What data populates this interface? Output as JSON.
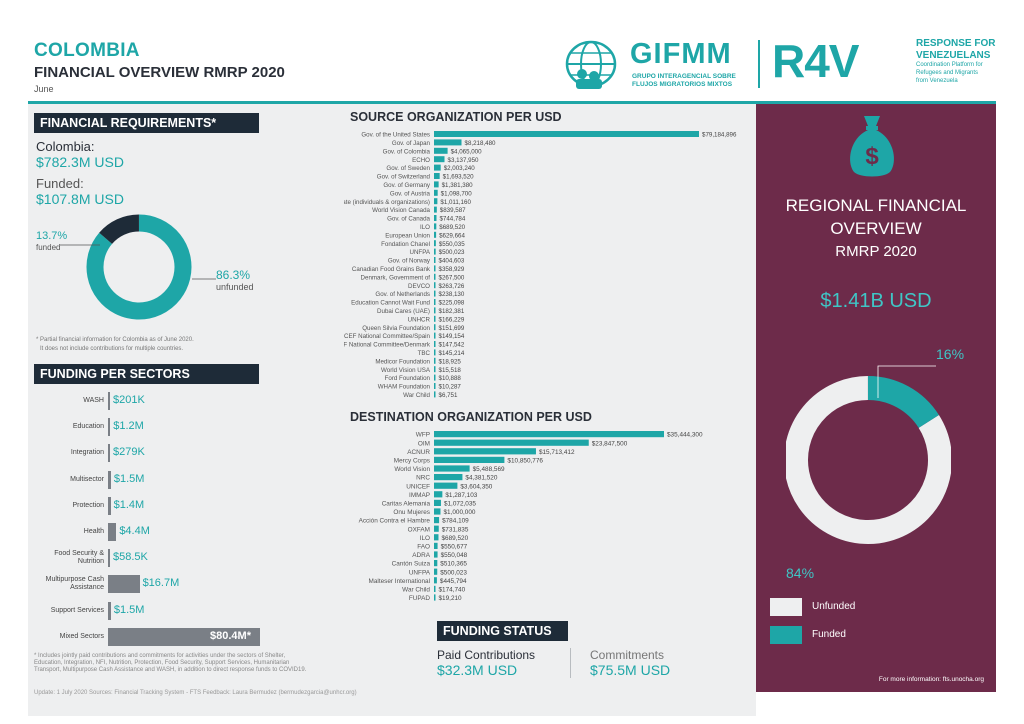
{
  "header": {
    "country": "COLOMBIA",
    "title": "FINANCIAL OVERVIEW RMRP 2020",
    "month": "June",
    "gifmm_name": "GIFMM",
    "gifmm_sub1": "GRUPO INTERAGENCIAL SOBRE",
    "gifmm_sub2": "FLUJOS MIGRATORIOS MIXTOS",
    "r4v_name": "R4V",
    "r4v_line1": "RESPONSE FOR",
    "r4v_line2": "VENEZUELANS",
    "r4v_line3": "Coordination Platform for",
    "r4v_line4": "Refugees and Migrants",
    "r4v_line5": "from Venezuela"
  },
  "colors": {
    "teal": "#1ea6a7",
    "navy": "#1e2b38",
    "grey_bar": "#7a7f86",
    "purple": "#6d2b4a"
  },
  "financial_requirements": {
    "heading": "FINANCIAL REQUIREMENTS*",
    "colombia_label": "Colombia:",
    "requirement": "$782.3M USD",
    "funded_label": "Funded:",
    "funded_value": "$107.8M USD",
    "funded_pct": "13.7%",
    "funded_pct_label": "funded",
    "unfunded_pct": "86.3%",
    "unfunded_pct_label": "unfunded",
    "funded_fraction": 0.137,
    "note_line1": "* Partial financial information for Colombia as of June 2020.",
    "note_line2": "It does not include contributions for multiple countries."
  },
  "funding_per_sectors": {
    "heading": "FUNDING PER SECTORS",
    "note": "* Includes jointly paid contributions and commitments for activities under the sectors of Shelter, Education, Integration, NFI, Nutrition, Protection, Food Security, Support Services, Humanitarian Transport, Multipurpose Cash Assistance and WASH, in addition to direct response funds to COVID19."
  },
  "footer": "Update: 1 July 2020    Sources: Financial Tracking System - FTS    Feedback: Laura Bermudez (bermudezgarcia@unhcr.org)",
  "chart_data": [
    {
      "type": "bar",
      "orientation": "horizontal",
      "title": "FUNDING PER SECTORS",
      "categories": [
        "WASH",
        "Education",
        "Integration",
        "Multisector",
        "Protection",
        "Health",
        "Food Security & Nutrition",
        "Multipurpose Cash Assistance",
        "Support Services",
        "Mixed Sectors"
      ],
      "values": [
        201000,
        1200000,
        279000,
        1500000,
        1400000,
        4400000,
        58500,
        16700000,
        1500000,
        80400000
      ],
      "labels": [
        "$201K",
        "$1.2M",
        "$279K",
        "$1.5M",
        "$1.4M",
        "$4.4M",
        "$58.5K",
        "$16.7M",
        "$1.5M",
        "$80.4M*"
      ]
    },
    {
      "type": "bar",
      "orientation": "horizontal",
      "title": "SOURCE ORGANIZATION PER USD",
      "categories": [
        "Gov. of the United States",
        "Gov. of Japan",
        "Gov. of Colombia",
        "ECHO",
        "Gov. of Sweden",
        "Gov. of Switzerland",
        "Gov. of Germany",
        "Gov. of Austria",
        "Private (individuals & organizations)",
        "World Vision Canada",
        "Gov. of Canada",
        "ILO",
        "European Union",
        "Fondation Chanel",
        "UNFPA",
        "Gov. of Norway",
        "Canadian Food Grains Bank",
        "Denmark, Government of",
        "DEVCO",
        "Gov. of Netherlands",
        "Education Cannot Wait Fund",
        "Dubai Cares (UAE)",
        "UNHCR",
        "Queen Silvia Foundation",
        "UNICEF National Committee/Spain",
        "UNICEF National Committee/Denmark",
        "TBC",
        "Medicor Foundation",
        "World Vision USA",
        "Ford Foundation",
        "WHAM Foundation",
        "War Child"
      ],
      "values": [
        79184896,
        8218480,
        4065000,
        3137950,
        2003240,
        1693520,
        1381380,
        1098700,
        1011160,
        839587,
        744784,
        689520,
        629664,
        550035,
        500023,
        404603,
        358929,
        267500,
        263726,
        238130,
        225098,
        182381,
        166229,
        151699,
        149154,
        147542,
        145214,
        18925,
        15518,
        10888,
        10287,
        6751
      ],
      "labels": [
        "$79,184,896",
        "$8,218,480",
        "$4,065,000",
        "$3,137,950",
        "$2,003,240",
        "$1,693,520",
        "$1,381,380",
        "$1,098,700",
        "$1,011,160",
        "$839,587",
        "$744,784",
        "$689,520",
        "$629,664",
        "$550,035",
        "$500,023",
        "$404,603",
        "$358,929",
        "$267,500",
        "$263,726",
        "$238,130",
        "$225,098",
        "$182,381",
        "$166,229",
        "$151,699",
        "$149,154",
        "$147,542",
        "$145,214",
        "$18,925",
        "$15,518",
        "$10,888",
        "$10,287",
        "$6,751"
      ]
    },
    {
      "type": "bar",
      "orientation": "horizontal",
      "title": "DESTINATION ORGANIZATION PER USD",
      "categories": [
        "WFP",
        "OIM",
        "ACNUR",
        "Mercy Corps",
        "World Vision",
        "NRC",
        "UNICEF",
        "IMMAP",
        "Caritas Alemania",
        "Onu Mujeres",
        "Acción Contra el Hambre",
        "OXFAM",
        "ILO",
        "FAO",
        "ADRA",
        "Cantón Suiza",
        "UNFPA",
        "Malteser International",
        "War Child",
        "FUPAD"
      ],
      "values": [
        35444300,
        23847500,
        15713412,
        10850776,
        5488569,
        4381520,
        3604350,
        1287103,
        1072035,
        1000000,
        784109,
        731835,
        689520,
        550677,
        550048,
        510365,
        500023,
        445794,
        174740,
        19210
      ],
      "labels": [
        "$35,444,300",
        "$23,847,500",
        "$15,713,412",
        "$10,850,776",
        "$5,488,569",
        "$4,381,520",
        "$3,604,350",
        "$1,287,103",
        "$1,072,035",
        "$1,000,000",
        "$784,109",
        "$731,835",
        "$689,520",
        "$550,677",
        "$550,048",
        "$510,365",
        "$500,023",
        "$445,794",
        "$174,740",
        "$19,210"
      ]
    },
    {
      "type": "pie",
      "title": "REGIONAL FINANCIAL OVERVIEW RMRP 2020",
      "categories": [
        "Funded",
        "Unfunded"
      ],
      "values": [
        16,
        84
      ],
      "labels": [
        "16%",
        "84%"
      ]
    }
  ],
  "funding_status": {
    "heading": "FUNDING STATUS",
    "paid_label": "Paid Contributions",
    "paid_value": "$32.3M USD",
    "commit_label": "Commitments",
    "commit_value": "$75.5M USD"
  },
  "regional": {
    "title_line1": "REGIONAL FINANCIAL",
    "title_line2": "OVERVIEW",
    "title_line3": "RMRP 2020",
    "total": "$1.41B USD",
    "funded_pct": "16%",
    "unfunded_pct": "84%",
    "legend_unfunded": "Unfunded",
    "legend_funded": "Funded",
    "more_info": "For more information: fts.unocha.org"
  },
  "icons": {
    "money_bag": "money-bag-icon",
    "globe": "globe-people-icon"
  }
}
